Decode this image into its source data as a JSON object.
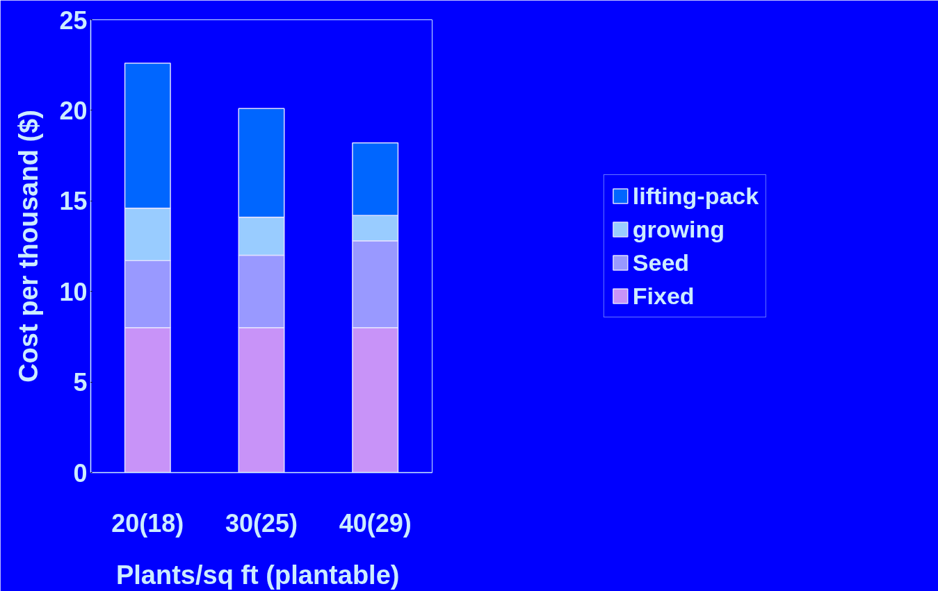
{
  "chart_data": {
    "type": "bar",
    "stacked": true,
    "xlabel": "Plants/sq ft  (plantable)",
    "ylabel": "Cost per thousand ($)",
    "categories": [
      "20(18)",
      "30(25)",
      "40(29)"
    ],
    "series": [
      {
        "name": "Fixed",
        "color": "#c893f8",
        "values": [
          8,
          8,
          8
        ]
      },
      {
        "name": "Seed",
        "color": "#9999ff",
        "values": [
          3.7,
          4,
          4.8
        ]
      },
      {
        "name": "growing",
        "color": "#99ccff",
        "values": [
          2.9,
          2.1,
          1.4
        ]
      },
      {
        "name": "lifting-pack",
        "color": "#0066ff",
        "values": [
          8.0,
          6.0,
          4.0
        ]
      }
    ],
    "ylim": [
      0,
      25
    ],
    "yticks": [
      0,
      5,
      10,
      15,
      20,
      25
    ],
    "grid": false,
    "legend": "right"
  }
}
